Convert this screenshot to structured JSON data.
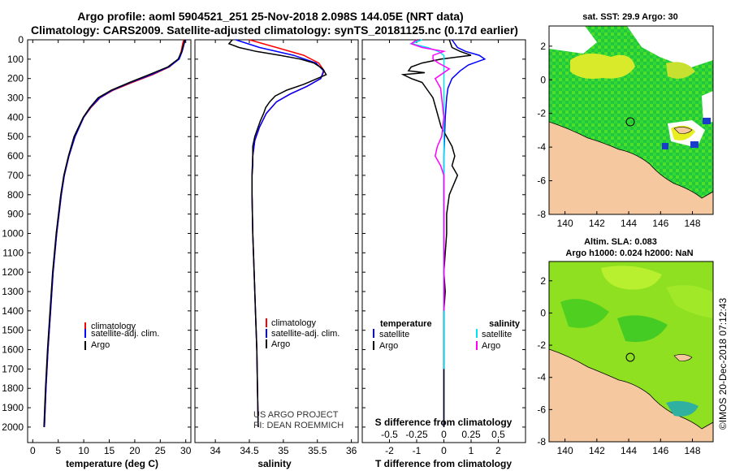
{
  "title": {
    "line1": "Argo profile: aoml 5904521_251 25-Nov-2018 2.098S 144.05E (NRT data)",
    "line2": "Climatology: CARS2009. Satellite-adjusted climatology: synTS_20181125.nc (0.17d earlier)"
  },
  "depth_ticks": [
    "0",
    "100",
    "200",
    "300",
    "400",
    "500",
    "600",
    "700",
    "800",
    "900",
    "1000",
    "1100",
    "1200",
    "1300",
    "1400",
    "1500",
    "1600",
    "1700",
    "1800",
    "1900",
    "2000"
  ],
  "colors": {
    "climatology": "#ff0000",
    "satellite": "#0000ff",
    "argo": "#000000",
    "sat_salinity": "#00e5ee",
    "argo_salinity": "#ff00ff",
    "land": "#f5c8a0"
  },
  "chart_data": [
    {
      "type": "line",
      "id": "temperature",
      "xlabel": "temperature (deg C)",
      "ylabel": "depth",
      "xlim": [
        -1,
        31
      ],
      "ylim": [
        2080,
        0
      ],
      "xticks": [
        "0",
        "5",
        "10",
        "15",
        "20",
        "25",
        "30"
      ],
      "xtick_values": [
        0,
        5,
        10,
        15,
        20,
        25,
        30
      ],
      "legend": [
        "climatology",
        "satellite-adj. clim.",
        "Argo"
      ],
      "series": [
        {
          "name": "climatology",
          "depth": [
            0,
            20,
            60,
            100,
            140,
            180,
            220,
            260,
            300,
            350,
            400,
            500,
            600,
            700,
            800,
            1000,
            1200,
            1400,
            1600,
            1800,
            2000
          ],
          "values": [
            29.6,
            29.4,
            29.1,
            28.6,
            26.8,
            23.5,
            19.5,
            15.8,
            13.2,
            11.4,
            10.0,
            8.3,
            7.1,
            6.2,
            5.6,
            4.7,
            4.0,
            3.5,
            3.0,
            2.6,
            2.3
          ]
        },
        {
          "name": "satellite-adj. clim.",
          "depth": [
            0,
            20,
            60,
            100,
            140,
            180,
            220,
            260,
            300,
            350,
            400,
            500,
            600,
            700,
            800,
            1000,
            1200,
            1400,
            1600,
            1800,
            2000
          ],
          "values": [
            29.9,
            29.7,
            29.3,
            28.7,
            26.7,
            23.2,
            19.2,
            15.6,
            13.1,
            11.3,
            10.0,
            8.3,
            7.1,
            6.2,
            5.6,
            4.7,
            4.0,
            3.5,
            3.0,
            2.6,
            2.3
          ]
        },
        {
          "name": "Argo",
          "depth": [
            0,
            20,
            60,
            100,
            140,
            180,
            220,
            260,
            300,
            350,
            400,
            500,
            600,
            700,
            800,
            1000,
            1200,
            1400,
            1600,
            1800,
            2000
          ],
          "values": [
            29.8,
            29.6,
            29.2,
            28.5,
            26.5,
            22.8,
            19.0,
            15.4,
            12.8,
            11.2,
            9.9,
            8.1,
            7.0,
            6.1,
            5.5,
            4.6,
            3.9,
            3.4,
            2.9,
            2.5,
            2.2
          ]
        }
      ]
    },
    {
      "type": "line",
      "id": "salinity",
      "xlabel": "salinity",
      "ylabel": "depth",
      "xlim": [
        33.7,
        36.1
      ],
      "ylim": [
        2080,
        0
      ],
      "xticks": [
        "34",
        "34.5",
        "35",
        "35.5",
        "36"
      ],
      "xtick_values": [
        34,
        34.5,
        35,
        35.5,
        36
      ],
      "legend": [
        "climatology",
        "satellite-adj. clim.",
        "Argo"
      ],
      "annotation": [
        "US ARGO PROJECT",
        "PI: DEAN ROEMMICH"
      ],
      "series": [
        {
          "name": "climatology",
          "depth": [
            0,
            40,
            80,
            120,
            160,
            200,
            240,
            280,
            320,
            380,
            450,
            520,
            600,
            700,
            800,
            1000,
            1200,
            1400,
            1600,
            1800,
            2000
          ],
          "values": [
            34.5,
            34.9,
            35.3,
            35.52,
            35.6,
            35.55,
            35.35,
            35.1,
            34.9,
            34.75,
            34.65,
            34.58,
            34.55,
            34.54,
            34.54,
            34.55,
            34.57,
            34.59,
            34.61,
            34.62,
            34.63
          ]
        },
        {
          "name": "satellite-adj. clim.",
          "depth": [
            0,
            40,
            80,
            120,
            160,
            200,
            240,
            280,
            320,
            380,
            450,
            520,
            600,
            700,
            800,
            1000,
            1200,
            1400,
            1600,
            1800,
            2000
          ],
          "values": [
            34.3,
            34.65,
            35.15,
            35.48,
            35.59,
            35.55,
            35.35,
            35.1,
            34.9,
            34.75,
            34.65,
            34.58,
            34.55,
            34.54,
            34.54,
            34.55,
            34.57,
            34.59,
            34.61,
            34.62,
            34.63
          ]
        },
        {
          "name": "Argo",
          "depth": [
            0,
            20,
            40,
            60,
            80,
            100,
            120,
            150,
            180,
            200,
            230,
            260,
            290,
            320,
            350,
            380,
            420,
            460,
            500,
            550,
            600,
            650,
            700,
            800,
            1000,
            1200,
            1400,
            1600,
            1800,
            2000
          ],
          "values": [
            34.25,
            34.2,
            34.35,
            34.6,
            34.95,
            35.25,
            35.45,
            35.58,
            35.63,
            35.5,
            35.3,
            35.05,
            34.88,
            34.8,
            34.74,
            34.71,
            34.66,
            34.62,
            34.58,
            34.55,
            34.55,
            34.55,
            34.54,
            34.54,
            34.55,
            34.57,
            34.59,
            34.61,
            34.62,
            34.63
          ]
        }
      ]
    },
    {
      "type": "line",
      "id": "difference",
      "xlabel": "T difference from climatology",
      "ylabel": "depth",
      "upper_label": "S difference from climatology",
      "xlim": [
        -3,
        3
      ],
      "ylim": [
        2080,
        0
      ],
      "xticks": [
        "-2",
        "-1",
        "0",
        "1",
        "2"
      ],
      "xtick_values": [
        -2,
        -1,
        0,
        1,
        2
      ],
      "s_ticks": [
        "-0.5",
        "-0.25",
        "0",
        "0.25",
        "0.5"
      ],
      "legend_left": [
        "temperature",
        "satellite",
        "Argo"
      ],
      "legend_right": [
        "salinity",
        "satellite",
        "Argo"
      ],
      "series": [
        {
          "name": "T satellite",
          "depth": [
            0,
            40,
            60,
            80,
            100,
            110,
            130,
            160,
            200,
            250,
            300,
            400,
            600,
            800,
            1000,
            1500,
            2000
          ],
          "values": [
            0.3,
            0.5,
            0.8,
            1.3,
            1.5,
            1.3,
            0.9,
            0.6,
            0.3,
            0.15,
            0.1,
            0.05,
            0.0,
            0.0,
            0.0,
            0.0,
            0.0
          ]
        },
        {
          "name": "T Argo",
          "depth": [
            0,
            40,
            60,
            80,
            100,
            120,
            140,
            160,
            170,
            180,
            200,
            220,
            260,
            300,
            350,
            400,
            450,
            500,
            550,
            600,
            650,
            700,
            800,
            900,
            1000,
            1100,
            1200,
            1300,
            1400,
            2000
          ],
          "values": [
            0.2,
            0.3,
            0.6,
            1.0,
            -0.1,
            -0.8,
            -1.2,
            -1.3,
            -0.7,
            -1.5,
            -1.2,
            -0.8,
            -0.6,
            -0.4,
            -0.3,
            -0.2,
            -0.1,
            0.1,
            0.3,
            0.4,
            0.3,
            0.5,
            0.2,
            0.1,
            0.1,
            0.05,
            0.0,
            0.05,
            0.0,
            0.0
          ]
        },
        {
          "name": "S satellite",
          "depth": [
            0,
            20,
            40,
            60,
            80,
            100,
            150,
            200,
            300,
            400,
            600,
            800,
            1000,
            1500,
            1700
          ],
          "values": [
            -0.2,
            -0.3,
            -0.15,
            -0.05,
            0.0,
            0.0,
            0.0,
            0.0,
            0.0,
            0.0,
            0.0,
            0.0,
            0.0,
            0.0,
            0.0
          ]
        },
        {
          "name": "S Argo",
          "depth": [
            0,
            20,
            40,
            60,
            80,
            100,
            120,
            150,
            200,
            250,
            300,
            400,
            500,
            550,
            600,
            650,
            700,
            800,
            1000,
            1200,
            1400
          ],
          "values": [
            -0.25,
            -0.3,
            -0.2,
            0.0,
            -0.1,
            -0.1,
            -0.05,
            0.05,
            -0.08,
            -0.03,
            -0.02,
            0.0,
            -0.02,
            -0.06,
            -0.08,
            -0.03,
            0.0,
            0.0,
            0.0,
            0.0,
            0.0
          ]
        }
      ]
    },
    {
      "type": "heatmap",
      "id": "sst_map",
      "title": "sat. SST: 29.9 Argo: 30",
      "xlim": [
        139,
        149.3
      ],
      "ylim": [
        -8,
        3.2
      ],
      "xticks": [
        "140",
        "142",
        "144",
        "146",
        "148"
      ],
      "xtick_values": [
        140,
        142,
        144,
        146,
        148
      ],
      "yticks": [
        "2",
        "0",
        "-2",
        "-4",
        "-6",
        "-8"
      ],
      "ytick_values": [
        2,
        0,
        -2,
        -4,
        -6,
        -8
      ],
      "argo_position": {
        "lon": 144.05,
        "lat": -2.098
      }
    },
    {
      "type": "heatmap",
      "id": "sla_map",
      "title": "Altim. SLA: 0.083",
      "subtitle": "Argo h1000: 0.024 h2000: NaN",
      "xlim": [
        139,
        149.3
      ],
      "ylim": [
        -8,
        3.2
      ],
      "xticks": [
        "140",
        "142",
        "144",
        "146",
        "148"
      ],
      "xtick_values": [
        140,
        142,
        144,
        146,
        148
      ],
      "yticks": [
        "2",
        "0",
        "-2",
        "-4",
        "-6",
        "-8"
      ],
      "ytick_values": [
        2,
        0,
        -2,
        -4,
        -6,
        -8
      ],
      "argo_position": {
        "lon": 144.05,
        "lat": -2.098
      }
    }
  ],
  "footer": "©IMOS 20-Dec-2018 07:12:43"
}
